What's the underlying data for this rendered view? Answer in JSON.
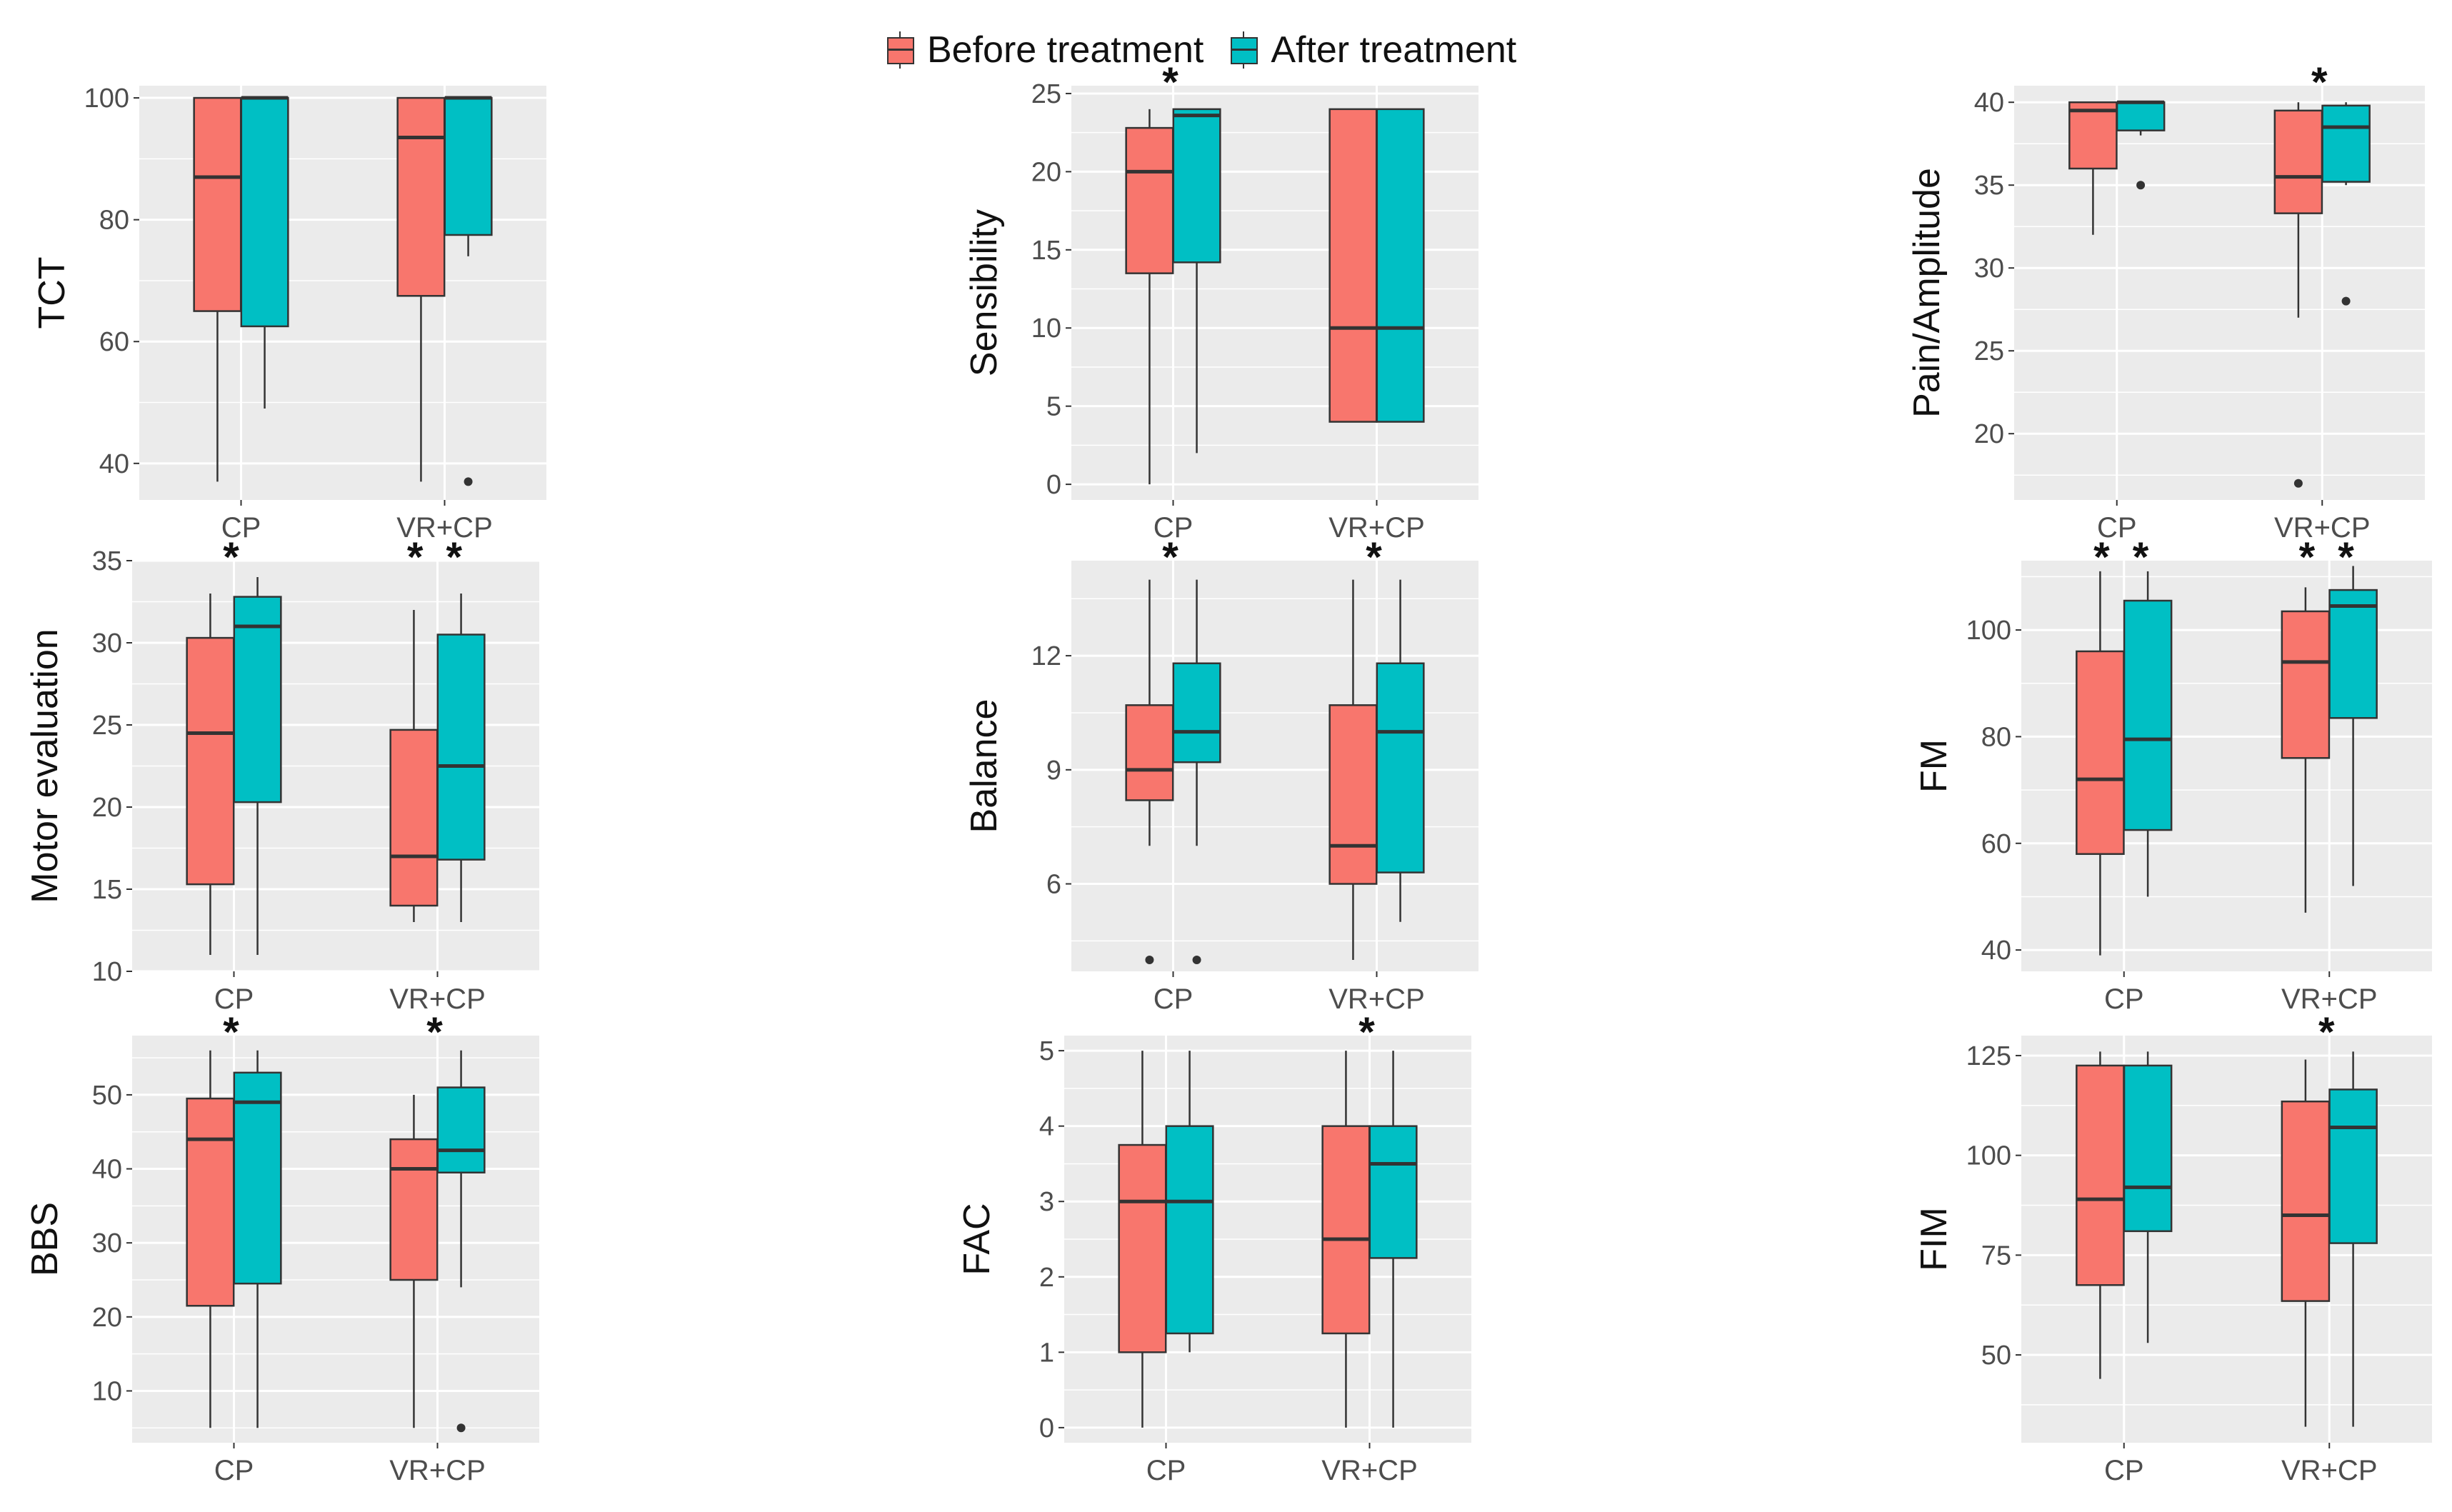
{
  "legend": {
    "before_label": "Before treatment",
    "after_label": "After treatment"
  },
  "colors": {
    "before": "#F8766D",
    "after": "#00BFC4",
    "panel_bg": "#EBEBEB",
    "grid": "#FFFFFF",
    "outline": "#333333"
  },
  "chart_data": [
    {
      "type": "box",
      "ylabel": "TCT",
      "categories": [
        "CP",
        "VR+CP"
      ],
      "ylim": [
        34,
        102
      ],
      "yticks": [
        40,
        60,
        80,
        100
      ],
      "stars": [
        "",
        ""
      ],
      "series": [
        {
          "name": "Before treatment",
          "boxes": [
            {
              "min": 37,
              "q1": 65,
              "median": 87,
              "q3": 100,
              "max": 100,
              "outliers": []
            },
            {
              "min": 37,
              "q1": 67.5,
              "median": 93.5,
              "q3": 100,
              "max": 100,
              "outliers": []
            }
          ]
        },
        {
          "name": "After treatment",
          "boxes": [
            {
              "min": 49,
              "q1": 62.5,
              "median": 100,
              "q3": 100,
              "max": 100,
              "outliers": []
            },
            {
              "min": 74,
              "q1": 77.5,
              "median": 100,
              "q3": 100,
              "max": 100,
              "outliers": [
                37
              ]
            }
          ]
        }
      ]
    },
    {
      "type": "box",
      "ylabel": "Sensibility",
      "categories": [
        "CP",
        "VR+CP"
      ],
      "ylim": [
        -1,
        25.5
      ],
      "yticks": [
        0,
        5,
        10,
        15,
        20,
        25
      ],
      "stars": [
        "*",
        ""
      ],
      "series": [
        {
          "name": "Before treatment",
          "boxes": [
            {
              "min": 0,
              "q1": 13.5,
              "median": 20,
              "q3": 22.8,
              "max": 24,
              "outliers": []
            },
            {
              "min": 4,
              "q1": 4,
              "median": 10,
              "q3": 24,
              "max": 24,
              "outliers": []
            }
          ]
        },
        {
          "name": "After treatment",
          "boxes": [
            {
              "min": 2,
              "q1": 14.2,
              "median": 23.6,
              "q3": 24,
              "max": 24,
              "outliers": []
            },
            {
              "min": 4,
              "q1": 4,
              "median": 10,
              "q3": 24,
              "max": 24,
              "outliers": []
            }
          ]
        }
      ]
    },
    {
      "type": "box",
      "ylabel": "Pain/Amplitude",
      "categories": [
        "CP",
        "VR+CP"
      ],
      "ylim": [
        16,
        41
      ],
      "yticks": [
        20,
        25,
        30,
        35,
        40
      ],
      "stars": [
        "",
        "*"
      ],
      "series": [
        {
          "name": "Before treatment",
          "boxes": [
            {
              "min": 32,
              "q1": 36,
              "median": 39.5,
              "q3": 40,
              "max": 40,
              "outliers": []
            },
            {
              "min": 27,
              "q1": 33.3,
              "median": 35.5,
              "q3": 39.5,
              "max": 40,
              "outliers": [
                17
              ]
            }
          ]
        },
        {
          "name": "After treatment",
          "boxes": [
            {
              "min": 38,
              "q1": 38.3,
              "median": 40,
              "q3": 40,
              "max": 40,
              "outliers": [
                35
              ]
            },
            {
              "min": 35,
              "q1": 35.2,
              "median": 38.5,
              "q3": 39.8,
              "max": 40,
              "outliers": [
                28
              ]
            }
          ]
        }
      ]
    },
    {
      "type": "box",
      "ylabel": "Motor evaluation",
      "categories": [
        "CP",
        "VR+CP"
      ],
      "ylim": [
        10,
        35
      ],
      "yticks": [
        10,
        15,
        20,
        25,
        30,
        35
      ],
      "stars": [
        "*",
        "**"
      ],
      "series": [
        {
          "name": "Before treatment",
          "boxes": [
            {
              "min": 11,
              "q1": 15.3,
              "median": 24.5,
              "q3": 30.3,
              "max": 33,
              "outliers": []
            },
            {
              "min": 13,
              "q1": 14,
              "median": 17,
              "q3": 24.7,
              "max": 32,
              "outliers": []
            }
          ]
        },
        {
          "name": "After treatment",
          "boxes": [
            {
              "min": 11,
              "q1": 20.3,
              "median": 31,
              "q3": 32.8,
              "max": 34,
              "outliers": []
            },
            {
              "min": 13,
              "q1": 16.8,
              "median": 22.5,
              "q3": 30.5,
              "max": 33,
              "outliers": []
            }
          ]
        }
      ]
    },
    {
      "type": "box",
      "ylabel": "Balance",
      "categories": [
        "CP",
        "VR+CP"
      ],
      "ylim": [
        3.7,
        14.5
      ],
      "yticks": [
        6,
        9,
        12
      ],
      "stars": [
        "*",
        "*"
      ],
      "series": [
        {
          "name": "Before treatment",
          "boxes": [
            {
              "min": 7,
              "q1": 8.2,
              "median": 9,
              "q3": 10.7,
              "max": 14,
              "outliers": [
                4
              ]
            },
            {
              "min": 4,
              "q1": 6,
              "median": 7,
              "q3": 10.7,
              "max": 14,
              "outliers": []
            }
          ]
        },
        {
          "name": "After treatment",
          "boxes": [
            {
              "min": 7,
              "q1": 9.2,
              "median": 10,
              "q3": 11.8,
              "max": 14,
              "outliers": [
                4
              ]
            },
            {
              "min": 5,
              "q1": 6.3,
              "median": 10,
              "q3": 11.8,
              "max": 14,
              "outliers": []
            }
          ]
        }
      ]
    },
    {
      "type": "box",
      "ylabel": "FM",
      "categories": [
        "CP",
        "VR+CP"
      ],
      "ylim": [
        36,
        113
      ],
      "yticks": [
        40,
        60,
        80,
        100
      ],
      "stars": [
        "**",
        "**"
      ],
      "series": [
        {
          "name": "Before treatment",
          "boxes": [
            {
              "min": 39,
              "q1": 58,
              "median": 72,
              "q3": 96,
              "max": 111,
              "outliers": []
            },
            {
              "min": 47,
              "q1": 76,
              "median": 94,
              "q3": 103.5,
              "max": 108,
              "outliers": []
            }
          ]
        },
        {
          "name": "After treatment",
          "boxes": [
            {
              "min": 50,
              "q1": 62.5,
              "median": 79.5,
              "q3": 105.5,
              "max": 111,
              "outliers": []
            },
            {
              "min": 52,
              "q1": 83.5,
              "median": 104.5,
              "q3": 107.5,
              "max": 112,
              "outliers": []
            }
          ]
        }
      ]
    },
    {
      "type": "box",
      "ylabel": "BBS",
      "categories": [
        "CP",
        "VR+CP"
      ],
      "ylim": [
        3,
        58
      ],
      "yticks": [
        10,
        20,
        30,
        40,
        50
      ],
      "stars": [
        "*",
        "*"
      ],
      "series": [
        {
          "name": "Before treatment",
          "boxes": [
            {
              "min": 5,
              "q1": 21.5,
              "median": 44,
              "q3": 49.5,
              "max": 56,
              "outliers": []
            },
            {
              "min": 5,
              "q1": 25,
              "median": 40,
              "q3": 44,
              "max": 50,
              "outliers": []
            }
          ]
        },
        {
          "name": "After treatment",
          "boxes": [
            {
              "min": 5,
              "q1": 24.5,
              "median": 49,
              "q3": 53,
              "max": 56,
              "outliers": []
            },
            {
              "min": 24,
              "q1": 39.5,
              "median": 42.5,
              "q3": 51,
              "max": 56,
              "outliers": [
                5
              ]
            }
          ]
        }
      ]
    },
    {
      "type": "box",
      "ylabel": "FAC",
      "categories": [
        "CP",
        "VR+CP"
      ],
      "ylim": [
        -0.2,
        5.2
      ],
      "yticks": [
        0,
        1,
        2,
        3,
        4,
        5
      ],
      "stars": [
        "",
        "*"
      ],
      "series": [
        {
          "name": "Before treatment",
          "boxes": [
            {
              "min": 0,
              "q1": 1,
              "median": 3,
              "q3": 3.75,
              "max": 5,
              "outliers": []
            },
            {
              "min": 0,
              "q1": 1.25,
              "median": 2.5,
              "q3": 4,
              "max": 5,
              "outliers": []
            }
          ]
        },
        {
          "name": "After treatment",
          "boxes": [
            {
              "min": 1,
              "q1": 1.25,
              "median": 3,
              "q3": 4,
              "max": 5,
              "outliers": []
            },
            {
              "min": 0,
              "q1": 2.25,
              "median": 3.5,
              "q3": 4,
              "max": 5,
              "outliers": []
            }
          ]
        }
      ]
    },
    {
      "type": "box",
      "ylabel": "FIM",
      "categories": [
        "CP",
        "VR+CP"
      ],
      "ylim": [
        28,
        130
      ],
      "yticks": [
        50,
        75,
        100,
        125
      ],
      "stars": [
        "",
        "*"
      ],
      "series": [
        {
          "name": "Before treatment",
          "boxes": [
            {
              "min": 44,
              "q1": 67.5,
              "median": 89,
              "q3": 122.5,
              "max": 126,
              "outliers": []
            },
            {
              "min": 32,
              "q1": 63.5,
              "median": 85,
              "q3": 113.5,
              "max": 124,
              "outliers": []
            }
          ]
        },
        {
          "name": "After treatment",
          "boxes": [
            {
              "min": 53,
              "q1": 81,
              "median": 92,
              "q3": 122.5,
              "max": 126,
              "outliers": []
            },
            {
              "min": 32,
              "q1": 78,
              "median": 107,
              "q3": 116.5,
              "max": 126,
              "outliers": []
            }
          ]
        }
      ]
    }
  ]
}
